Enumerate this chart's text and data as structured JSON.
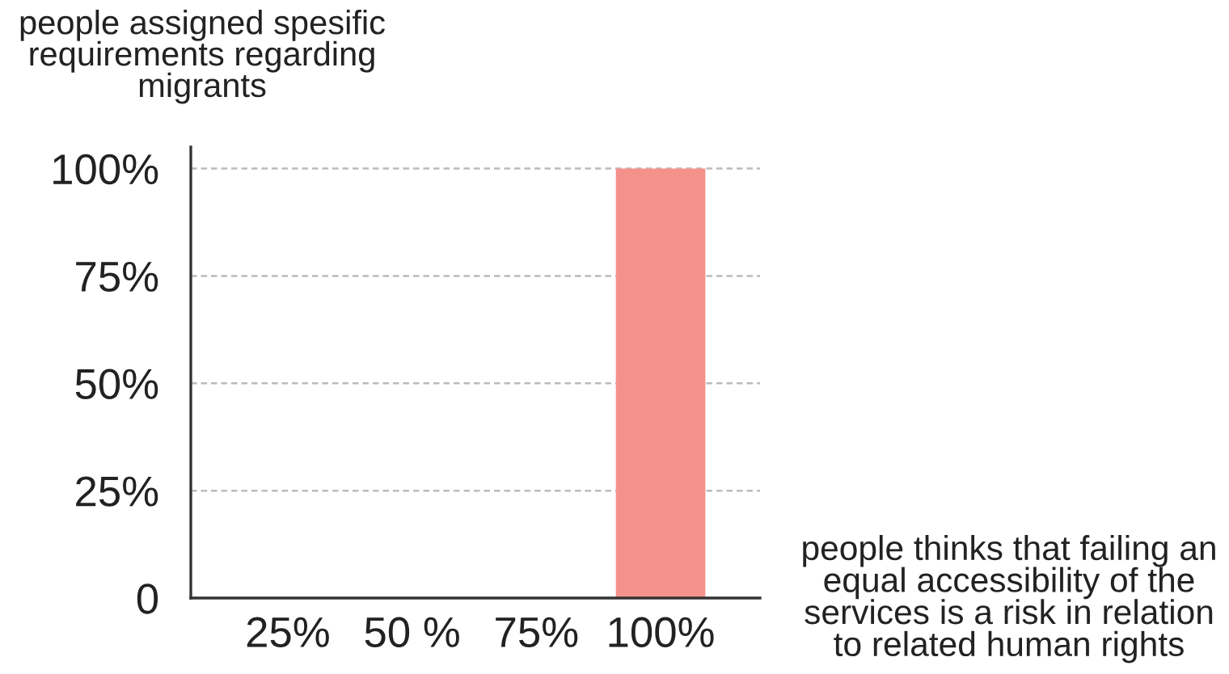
{
  "chart_data": {
    "type": "bar",
    "xlabel": "people thinks that failing an equal accessibility of the services is a risk in relation to related human rights",
    "ylabel": "people assigned spesific requirements regarding migrants",
    "categories": [
      "25%",
      "50 %",
      "75%",
      "100%"
    ],
    "values": [
      0,
      0,
      0,
      100
    ],
    "color": "#f5918b",
    "ylim": [
      0,
      105
    ],
    "yticks": [
      0,
      {
        "value": 25,
        "label": "25%"
      },
      {
        "value": 50,
        "label": "50%"
      },
      {
        "value": 75,
        "label": "75%"
      },
      {
        "value": 100,
        "label": "100%"
      }
    ],
    "grid": "y"
  }
}
